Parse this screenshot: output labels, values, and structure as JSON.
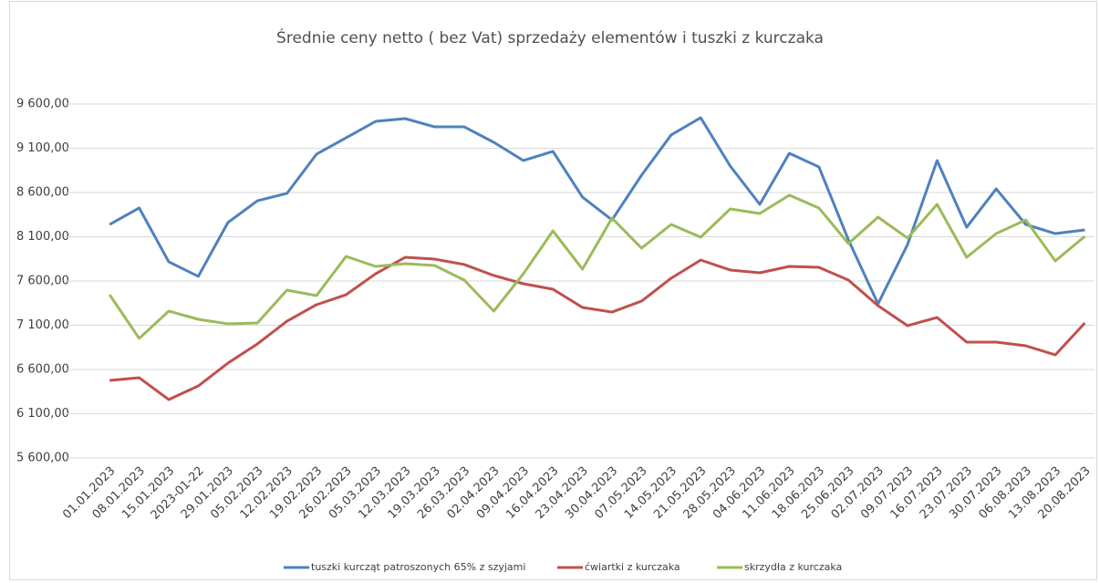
{
  "chart_data": {
    "type": "line",
    "title": "Średnie ceny netto ( bez Vat) sprzedaży elementów i tuszki z kurczaka",
    "categories": [
      "01.01.2023",
      "08.01.2023",
      "15.01.2023",
      "2023-01-22",
      "29.01.2023",
      "05.02.2023",
      "12.02.2023",
      "19.02.2023",
      "26.02.2023",
      "05.03.2023",
      "12.03.2023",
      "19.03.2023",
      "26.03.2023",
      "02.04.2023",
      "09.04.2023",
      "16.04.2023",
      "23.04.2023",
      "30.04.2023",
      "07.05.2023",
      "14.05.2023",
      "21.05.2023",
      "28.05.2023",
      "04.06.2023",
      "11.06.2023",
      "18.06.2023",
      "25.06.2023",
      "02.07.2023",
      "09.07.2023",
      "16.07.2023",
      "23.07.2023",
      "30.07.2023",
      "06.08.2023",
      "13.08.2023",
      "20.08.2023"
    ],
    "series": [
      {
        "name": "tuszki kurcząt patroszonych 65% z szyjami",
        "color": "#4f81bd",
        "values": [
          8239,
          8425,
          7817,
          7652,
          8260,
          8507,
          8590,
          9033,
          9218,
          9404,
          9435,
          9342,
          9342,
          9167,
          8961,
          9064,
          8548,
          8290,
          8796,
          9250,
          9445,
          8899,
          8466,
          9043,
          8889,
          8064,
          7342,
          8012,
          8961,
          8208,
          8641,
          8239,
          8136,
          8177
        ]
      },
      {
        "name": "ćwiartki z kurczaka",
        "color": "#c0504d",
        "values": [
          6476,
          6507,
          6260,
          6414,
          6672,
          6889,
          7146,
          7332,
          7445,
          7682,
          7868,
          7847,
          7786,
          7662,
          7569,
          7507,
          7301,
          7249,
          7373,
          7631,
          7837,
          7724,
          7693,
          7765,
          7755,
          7610,
          7322,
          7095,
          7188,
          6909,
          6909,
          6868,
          6765,
          7126
        ]
      },
      {
        "name": "skrzydła z kurczaka",
        "color": "#9bbb59",
        "values": [
          7445,
          6951,
          7260,
          7167,
          7116,
          7126,
          7497,
          7435,
          7878,
          7765,
          7796,
          7775,
          7610,
          7260,
          7682,
          8167,
          7734,
          8311,
          7971,
          8239,
          8095,
          8414,
          8363,
          8570,
          8425,
          8023,
          8322,
          8085,
          8466,
          7868,
          8136,
          8290,
          7827,
          8105
        ]
      }
    ],
    "ylim": [
      5600,
      9600
    ],
    "yticks": [
      {
        "value": 5600,
        "label": "5 600,00"
      },
      {
        "value": 6100,
        "label": "6 100,00"
      },
      {
        "value": 6600,
        "label": "6 600,00"
      },
      {
        "value": 7100,
        "label": "7 100,00"
      },
      {
        "value": 7600,
        "label": "7 600,00"
      },
      {
        "value": 8100,
        "label": "8 100,00"
      },
      {
        "value": 8600,
        "label": "8 600,00"
      },
      {
        "value": 9100,
        "label": "9 100,00"
      },
      {
        "value": 9600,
        "label": "9 600,00"
      }
    ],
    "grid": true,
    "legend": "bottom"
  }
}
